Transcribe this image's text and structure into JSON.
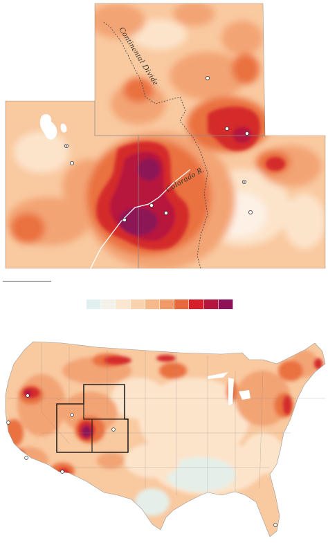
{
  "labels": {
    "divide": "Continental Divide",
    "river": "Colorado R."
  },
  "legend": {
    "colors": [
      "#dff0ef",
      "#f4f1ea",
      "#fbe6d2",
      "#f9d3b0",
      "#f7b98a",
      "#f29a68",
      "#e8683e",
      "#d51f2b",
      "#b5163f",
      "#8e1157"
    ]
  },
  "palette": {
    "base": "#f9c9a0",
    "light": "#fce4cb",
    "pale": "#fdf1e6",
    "cool": "#e4efe9",
    "mid": "#f3a474",
    "orange": "#ea7140",
    "red": "#d42a2c",
    "crimson": "#b7183e",
    "purple": "#8c1257",
    "water": "#ffffff",
    "border": "#8a8a8a",
    "outline": "#222222"
  }
}
